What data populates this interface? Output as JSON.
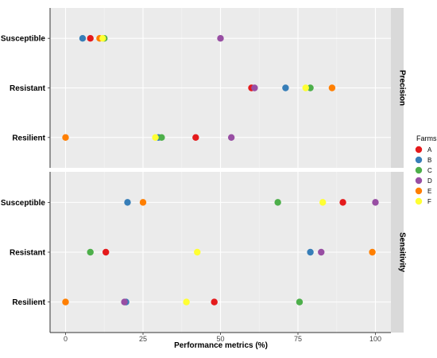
{
  "chart_data": {
    "type": "scatter",
    "xlabel": "Performance metrics (%)",
    "xlim": [
      -5,
      105
    ],
    "xticks": [
      "0",
      "25",
      "50",
      "75",
      "100"
    ],
    "categories": [
      "Susceptible",
      "Resistant",
      "Resilient"
    ],
    "legend": {
      "title": "Farms",
      "placement": "right",
      "entries": [
        {
          "label": "A",
          "color": "#E41A1C"
        },
        {
          "label": "B",
          "color": "#377EB8"
        },
        {
          "label": "C",
          "color": "#4DAF4A"
        },
        {
          "label": "D",
          "color": "#984EA3"
        },
        {
          "label": "E",
          "color": "#FF7F00"
        },
        {
          "label": "F",
          "color": "#FFFF33"
        }
      ]
    },
    "panels": [
      {
        "strip": "Precision",
        "points": [
          {
            "category": "Susceptible",
            "farm": "A",
            "x": 8
          },
          {
            "category": "Susceptible",
            "farm": "B",
            "x": 5.5
          },
          {
            "category": "Susceptible",
            "farm": "C",
            "x": 12.5
          },
          {
            "category": "Susceptible",
            "farm": "D",
            "x": 50
          },
          {
            "category": "Susceptible",
            "farm": "E",
            "x": 11
          },
          {
            "category": "Susceptible",
            "farm": "F",
            "x": 12
          },
          {
            "category": "Resistant",
            "farm": "A",
            "x": 60
          },
          {
            "category": "Resistant",
            "farm": "B",
            "x": 71
          },
          {
            "category": "Resistant",
            "farm": "C",
            "x": 79
          },
          {
            "category": "Resistant",
            "farm": "D",
            "x": 61
          },
          {
            "category": "Resistant",
            "farm": "E",
            "x": 86
          },
          {
            "category": "Resistant",
            "farm": "F",
            "x": 77.5
          },
          {
            "category": "Resilient",
            "farm": "A",
            "x": 42
          },
          {
            "category": "Resilient",
            "farm": "B",
            "x": 30
          },
          {
            "category": "Resilient",
            "farm": "C",
            "x": 31
          },
          {
            "category": "Resilient",
            "farm": "D",
            "x": 53.5
          },
          {
            "category": "Resilient",
            "farm": "E",
            "x": 0
          },
          {
            "category": "Resilient",
            "farm": "F",
            "x": 29
          }
        ]
      },
      {
        "strip": "Sensitivity",
        "points": [
          {
            "category": "Susceptible",
            "farm": "A",
            "x": 89.5
          },
          {
            "category": "Susceptible",
            "farm": "B",
            "x": 20
          },
          {
            "category": "Susceptible",
            "farm": "C",
            "x": 68.5
          },
          {
            "category": "Susceptible",
            "farm": "D",
            "x": 100
          },
          {
            "category": "Susceptible",
            "farm": "E",
            "x": 25
          },
          {
            "category": "Susceptible",
            "farm": "F",
            "x": 83
          },
          {
            "category": "Resistant",
            "farm": "A",
            "x": 13
          },
          {
            "category": "Resistant",
            "farm": "B",
            "x": 79
          },
          {
            "category": "Resistant",
            "farm": "C",
            "x": 8
          },
          {
            "category": "Resistant",
            "farm": "D",
            "x": 82.5
          },
          {
            "category": "Resistant",
            "farm": "E",
            "x": 99
          },
          {
            "category": "Resistant",
            "farm": "F",
            "x": 42.5
          },
          {
            "category": "Resilient",
            "farm": "A",
            "x": 48
          },
          {
            "category": "Resilient",
            "farm": "B",
            "x": 19.5
          },
          {
            "category": "Resilient",
            "farm": "C",
            "x": 75.5
          },
          {
            "category": "Resilient",
            "farm": "D",
            "x": 19
          },
          {
            "category": "Resilient",
            "farm": "E",
            "x": 0
          },
          {
            "category": "Resilient",
            "farm": "F",
            "x": 39
          }
        ]
      }
    ]
  }
}
